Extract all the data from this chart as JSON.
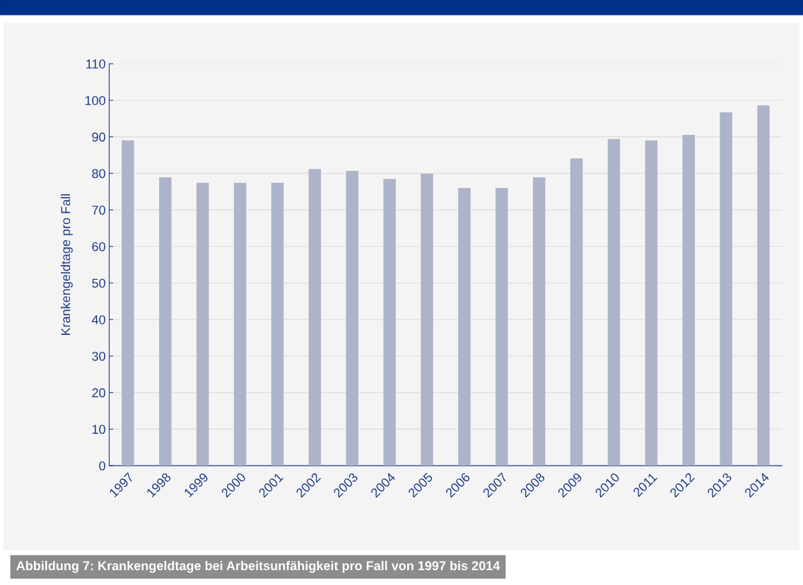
{
  "chart_data": {
    "type": "bar",
    "ylabel": "Krankengeldtage pro Fall",
    "categories": [
      "1997",
      "1998",
      "1999",
      "2000",
      "2001",
      "2002",
      "2003",
      "2004",
      "2005",
      "2006",
      "2007",
      "2008",
      "2009",
      "2010",
      "2011",
      "2012",
      "2013",
      "2014"
    ],
    "values": [
      89.0,
      78.9,
      77.4,
      77.4,
      77.4,
      81.2,
      80.7,
      78.5,
      79.9,
      76.0,
      76.0,
      78.9,
      84.1,
      89.4,
      89.0,
      90.5,
      96.7,
      98.6
    ],
    "color": "#adb3c8",
    "ylim": [
      0,
      110
    ],
    "yticks": [
      0,
      10,
      20,
      30,
      40,
      50,
      60,
      70,
      80,
      90,
      100,
      110
    ],
    "grid": "y",
    "annotations": [
      "Abbildung 7: Krankengeldtage bei Arbeitsunfähigkeit pro Fall von 1997 bis 2014"
    ]
  }
}
